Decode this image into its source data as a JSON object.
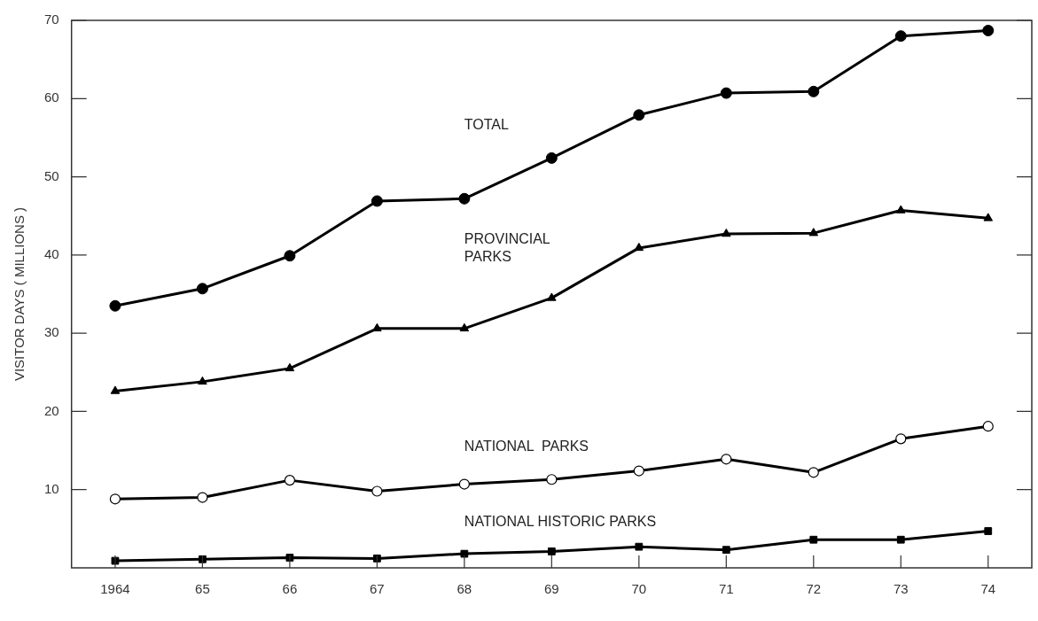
{
  "chart_data": {
    "type": "line",
    "ylabel": "VISITOR DAYS ( MILLIONS )",
    "categories": [
      "1964",
      "65",
      "66",
      "67",
      "68",
      "69",
      "70",
      "71",
      "72",
      "73",
      "74"
    ],
    "series": [
      {
        "name": "TOTAL",
        "color": "#000000",
        "marker": "circle",
        "values": [
          33.5,
          35.7,
          39.9,
          46.9,
          47.2,
          52.4,
          57.9,
          60.7,
          60.9,
          68.0,
          68.7
        ]
      },
      {
        "name": "PROVINCIAL PARKS",
        "color": "#000000",
        "marker": "triangle",
        "values": [
          22.6,
          23.8,
          25.5,
          30.6,
          30.6,
          34.5,
          40.9,
          42.7,
          42.8,
          45.7,
          44.7
        ]
      },
      {
        "name": "NATIONAL  PARKS",
        "color": "#000000",
        "marker": "open circle",
        "values": [
          8.8,
          9.0,
          11.2,
          9.8,
          10.7,
          11.3,
          12.4,
          13.9,
          12.2,
          16.5,
          18.1
        ]
      },
      {
        "name": "NATIONAL HISTORIC PARKS",
        "color": "#000000",
        "marker": "square",
        "values": [
          0.9,
          1.1,
          1.3,
          1.2,
          1.8,
          2.1,
          2.7,
          2.3,
          3.6,
          3.6,
          4.7
        ]
      }
    ],
    "ylim": [
      0,
      70
    ],
    "yticks": [
      10,
      20,
      30,
      40,
      50,
      60,
      70
    ],
    "grid": false,
    "legend": false,
    "line_style": "solid"
  }
}
